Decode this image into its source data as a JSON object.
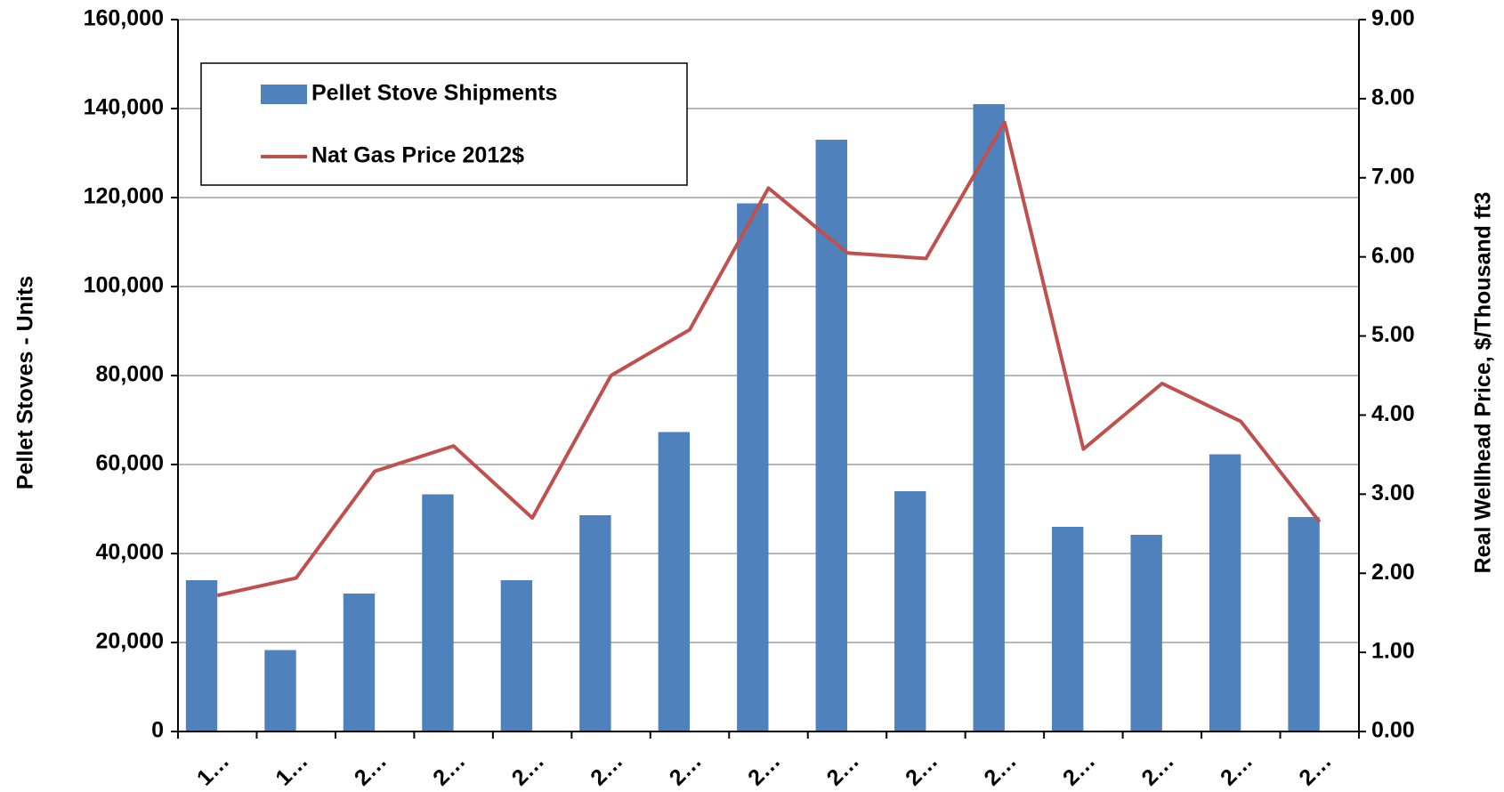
{
  "chart_data": {
    "type": "bar",
    "categories": [
      "1…",
      "1…",
      "2…",
      "2…",
      "2…",
      "2…",
      "2…",
      "2…",
      "2…",
      "2…",
      "2…",
      "2…",
      "2…",
      "2…",
      "2…"
    ],
    "series": [
      {
        "name": "Pellet Stove Shipments",
        "type": "bar",
        "color": "#4f81bd",
        "values": [
          34000,
          18300,
          31000,
          53300,
          34000,
          48600,
          67300,
          118700,
          133000,
          54000,
          141000,
          46000,
          44200,
          62300,
          48200
        ]
      },
      {
        "name": "Nat Gas Price 2012$",
        "type": "line",
        "color": "#c0504d",
        "axis": "y2",
        "values": [
          1.72,
          1.94,
          3.29,
          3.61,
          2.7,
          4.5,
          5.08,
          6.87,
          6.05,
          5.98,
          7.7,
          3.57,
          4.4,
          3.92,
          2.65
        ]
      }
    ],
    "ylabel": "Pellet Stoves - Units",
    "y2label": "Real Wellhead Price, $/Thousand ft3",
    "ylim": [
      0,
      160000
    ],
    "yticks": [
      0,
      {
        "value": 20000,
        "label": "20,000"
      },
      {
        "value": 40000,
        "label": "40,000"
      },
      {
        "value": 60000,
        "label": "60,000"
      },
      {
        "value": 80000,
        "label": "80,000"
      },
      {
        "value": 100000,
        "label": "100,000"
      },
      {
        "value": 120000,
        "label": "120,000"
      },
      {
        "value": 140000,
        "label": "140,000"
      },
      {
        "value": 160000,
        "label": "160,000"
      }
    ],
    "y2lim": [
      0,
      9
    ],
    "y2ticks": [
      {
        "value": 0,
        "label": "0.00"
      },
      {
        "value": 1,
        "label": "1.00"
      },
      {
        "value": 2,
        "label": "2.00"
      },
      {
        "value": 3,
        "label": "3.00"
      },
      {
        "value": 4,
        "label": "4.00"
      },
      {
        "value": 5,
        "label": "5.00"
      },
      {
        "value": 6,
        "label": "6.00"
      },
      {
        "value": 7,
        "label": "7.00"
      },
      {
        "value": 8,
        "label": "8.00"
      },
      {
        "value": 9,
        "label": "9.00"
      }
    ],
    "grid": true,
    "legend": "upper left"
  }
}
